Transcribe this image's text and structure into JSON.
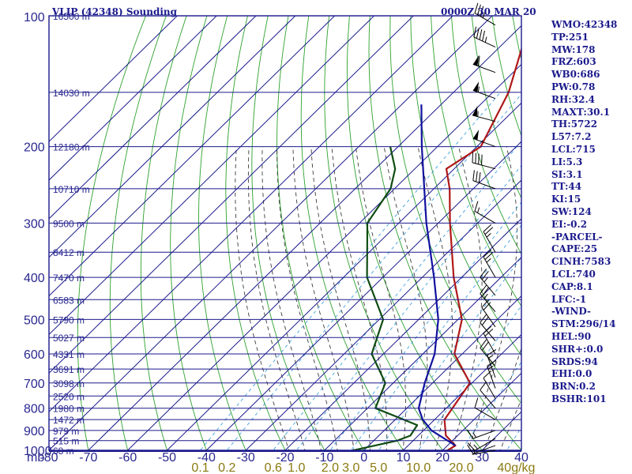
{
  "header": {
    "title": "VLIP (42348) Sounding",
    "datetime": "0000Z 30 MAR 20"
  },
  "indices": [
    "WMO:42348",
    "TP:251",
    "MW:178",
    "FRZ:603",
    "WB0:686",
    "PW:0.78",
    "RH:32.4",
    "MAXT:30.1",
    "TH:5722",
    "L57:7.2",
    "LCL:715",
    "LI:5.3",
    "SI:3.1",
    "TT:44",
    "KI:15",
    "SW:124",
    "EI:-0.2",
    "-PARCEL-",
    "CAPE:25",
    "CINH:7583",
    "LCL:740",
    "CAP:8.1",
    "LFC:-1",
    "-WIND-",
    "STM:296/14",
    "HEL:90",
    "SHR+:0.0",
    "SRDS:94",
    "EHI:0.0",
    "BRN:0.2",
    "BSHR:101"
  ],
  "chart_data": {
    "type": "line",
    "title": "VLIP (42348) Sounding",
    "diagram": "skew-T log-P",
    "yaxis": {
      "label": "mb",
      "scale": "log",
      "range": [
        1000,
        100
      ],
      "ticks": [
        "100",
        "200",
        "300",
        "400",
        "500",
        "600",
        "700",
        "800",
        "900",
        "1000"
      ]
    },
    "xaxis": {
      "label": "",
      "range": [
        -80,
        40
      ],
      "ticks": [
        "-80",
        "-70",
        "-60",
        "-50",
        "-40",
        "-30",
        "-20",
        "-10",
        "0",
        "10",
        "20",
        "30",
        "40"
      ]
    },
    "mixing_ratio_labels": [
      "0.1",
      "0.2",
      "0.6",
      "1.0",
      "2.0",
      "3.0",
      "5.0",
      "10.0",
      "20.0",
      "40g/kg"
    ],
    "height_labels": [
      {
        "p": 100,
        "label": "16500 m"
      },
      {
        "p": 150,
        "label": "14030 m"
      },
      {
        "p": 200,
        "label": "12180 m"
      },
      {
        "p": 250,
        "label": "10710 m"
      },
      {
        "p": 300,
        "label": "9500 m"
      },
      {
        "p": 350,
        "label": "8412 m"
      },
      {
        "p": 400,
        "label": "7470 m"
      },
      {
        "p": 450,
        "label": "6583 m"
      },
      {
        "p": 500,
        "label": "5790 m"
      },
      {
        "p": 550,
        "label": "5027 m"
      },
      {
        "p": 600,
        "label": "4331 m"
      },
      {
        "p": 650,
        "label": "3691 m"
      },
      {
        "p": 700,
        "label": "3098 m"
      },
      {
        "p": 750,
        "label": "2520 m"
      },
      {
        "p": 800,
        "label": "1980 m"
      },
      {
        "p": 850,
        "label": "1472 m"
      },
      {
        "p": 900,
        "label": "979 m"
      },
      {
        "p": 950,
        "label": "515 m"
      },
      {
        "p": 1000,
        "label": "68 m"
      }
    ],
    "series": [
      {
        "key": "temperature",
        "color": "#b01818",
        "points": [
          [
            1008,
            21
          ],
          [
            975,
            22
          ],
          [
            925,
            17
          ],
          [
            850,
            12.5
          ],
          [
            700,
            9.5
          ],
          [
            600,
            -2
          ],
          [
            500,
            -9
          ],
          [
            400,
            -22
          ],
          [
            300,
            -37
          ],
          [
            250,
            -46
          ],
          [
            225,
            -52
          ],
          [
            200,
            -49
          ],
          [
            150,
            -56
          ],
          [
            100,
            -70
          ]
        ]
      },
      {
        "key": "dewpoint",
        "color": "#0f4d12",
        "points": [
          [
            1008,
            -4
          ],
          [
            950,
            6
          ],
          [
            925,
            8
          ],
          [
            875,
            7
          ],
          [
            800,
            -8
          ],
          [
            700,
            -12
          ],
          [
            600,
            -23
          ],
          [
            500,
            -29
          ],
          [
            400,
            -44
          ],
          [
            300,
            -58
          ],
          [
            250,
            -61
          ],
          [
            225,
            -65
          ],
          [
            200,
            -72
          ]
        ]
      },
      {
        "key": "parcel",
        "color": "#1212a0",
        "points": [
          [
            975,
            22
          ],
          [
            900,
            12
          ],
          [
            850,
            7
          ],
          [
            800,
            3
          ],
          [
            700,
            -2
          ],
          [
            600,
            -7
          ],
          [
            500,
            -15
          ],
          [
            400,
            -27
          ],
          [
            300,
            -43
          ],
          [
            200,
            -64
          ],
          [
            160,
            -75
          ]
        ]
      }
    ],
    "wind_barbs": [
      {
        "p": 105,
        "dir": 300,
        "spd": 35
      },
      {
        "p": 118,
        "dir": 295,
        "spd": 45
      },
      {
        "p": 135,
        "dir": 290,
        "spd": 60
      },
      {
        "p": 155,
        "dir": 290,
        "spd": 55
      },
      {
        "p": 175,
        "dir": 285,
        "spd": 55
      },
      {
        "p": 200,
        "dir": 290,
        "spd": 50
      },
      {
        "p": 225,
        "dir": 285,
        "spd": 40
      },
      {
        "p": 250,
        "dir": 290,
        "spd": 30
      },
      {
        "p": 300,
        "dir": 300,
        "spd": 15
      },
      {
        "p": 350,
        "dir": 330,
        "spd": 25
      },
      {
        "p": 400,
        "dir": 330,
        "spd": 25
      },
      {
        "p": 440,
        "dir": 320,
        "spd": 25
      },
      {
        "p": 480,
        "dir": 320,
        "spd": 25
      },
      {
        "p": 520,
        "dir": 325,
        "spd": 20
      },
      {
        "p": 560,
        "dir": 320,
        "spd": 20
      },
      {
        "p": 600,
        "dir": 330,
        "spd": 20
      },
      {
        "p": 640,
        "dir": 320,
        "spd": 20
      },
      {
        "p": 680,
        "dir": 340,
        "spd": 15
      },
      {
        "p": 720,
        "dir": 340,
        "spd": 15
      },
      {
        "p": 760,
        "dir": 330,
        "spd": 10
      },
      {
        "p": 800,
        "dir": 320,
        "spd": 10
      },
      {
        "p": 850,
        "dir": 300,
        "spd": 10
      },
      {
        "p": 900,
        "dir": 250,
        "spd": 15
      },
      {
        "p": 940,
        "dir": 240,
        "spd": 15
      },
      {
        "p": 975,
        "dir": 250,
        "spd": 10
      },
      {
        "p": 1000,
        "dir": 260,
        "spd": 5
      }
    ],
    "colors": {
      "frame": "#1b1a8c",
      "isobar": "#1b1a8c",
      "isotherm": "#1b1a8c",
      "dry_adiabat": "#2ea12e",
      "moist_adiabat": "#3c3c3c",
      "mixing_ratio": "#3fa0e0",
      "barb": "#000000"
    }
  }
}
